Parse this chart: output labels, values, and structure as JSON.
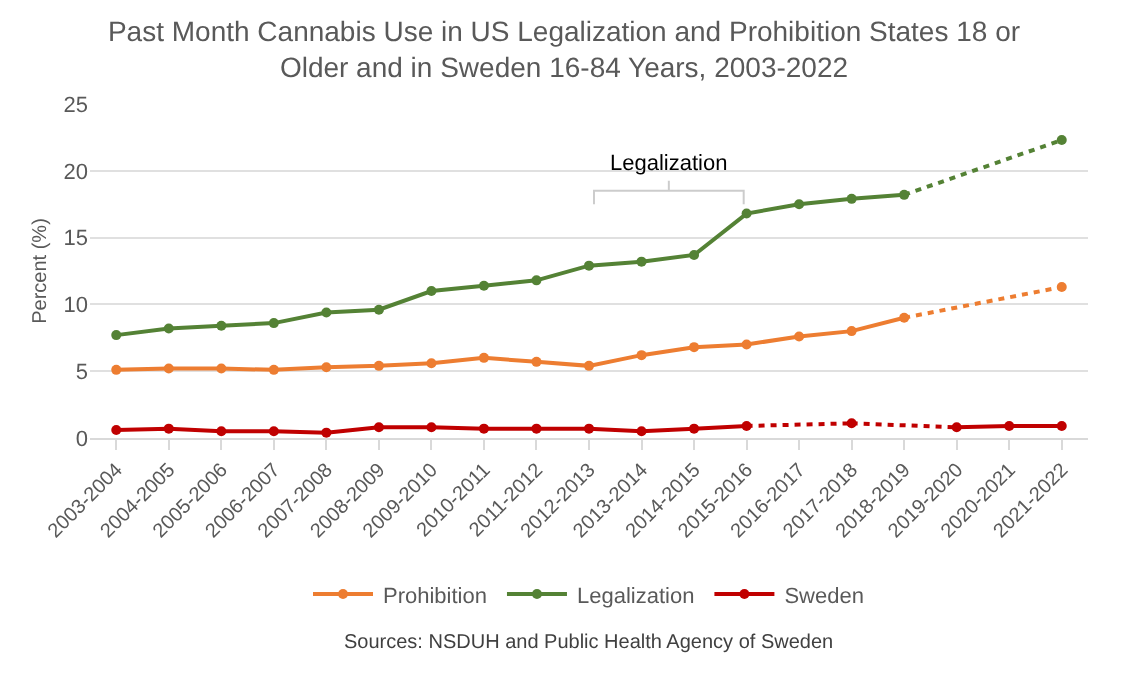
{
  "chart_data": {
    "type": "line",
    "title": "Past Month Cannabis Use in US Legalization and Prohibition States 18 or\nOlder and in Sweden 16-84 Years, 2003-2022",
    "ylabel": "Percent (%)",
    "categories": [
      "2003-2004",
      "2004-2005",
      "2005-2006",
      "2006-2007",
      "2007-2008",
      "2008-2009",
      "2009-2010",
      "2010-2011",
      "2011-2012",
      "2012-2013",
      "2013-2014",
      "2014-2015",
      "2015-2016",
      "2016-2017",
      "2017-2018",
      "2018-2019",
      "2019-2020",
      "2020-2021",
      "2021-2022"
    ],
    "series": [
      {
        "name": "Prohibition",
        "color": "#ed7d31",
        "values": [
          5.1,
          5.2,
          5.2,
          5.1,
          5.3,
          5.4,
          5.6,
          6.0,
          5.7,
          5.4,
          6.2,
          6.8,
          7.0,
          7.6,
          8.0,
          9.0,
          null,
          null,
          11.3
        ]
      },
      {
        "name": "Legalization",
        "color": "#548235",
        "values": [
          7.7,
          8.2,
          8.4,
          8.6,
          9.4,
          9.6,
          11.0,
          11.4,
          11.8,
          12.9,
          13.2,
          13.7,
          16.8,
          17.5,
          17.9,
          18.2,
          null,
          null,
          22.3
        ]
      },
      {
        "name": "Sweden",
        "color": "#c00000",
        "values": [
          0.6,
          0.7,
          0.5,
          0.5,
          0.4,
          0.8,
          0.8,
          0.7,
          0.7,
          0.7,
          0.5,
          0.7,
          0.9,
          null,
          1.1,
          null,
          0.8,
          0.9,
          0.9
        ]
      }
    ],
    "annotations": [
      "Legalization",
      "Sources: NSDUH and Public Health Agency of Sweden"
    ],
    "ylim": [
      0,
      25
    ],
    "yticks": [
      0,
      5,
      10,
      15,
      20,
      25
    ],
    "grid": "y",
    "legend": "bottom",
    "marker": "circle",
    "line_style": "solid"
  }
}
